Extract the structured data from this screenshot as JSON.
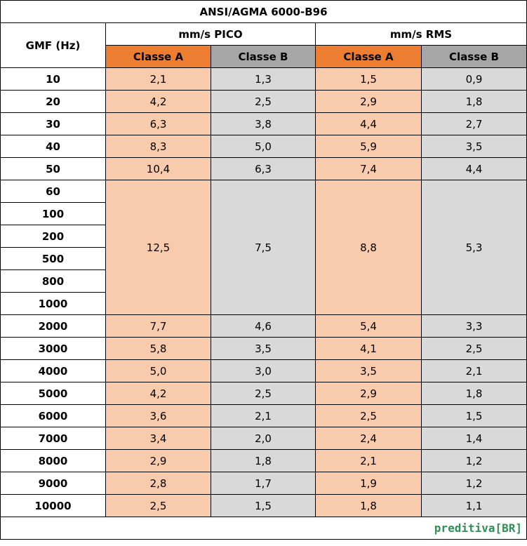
{
  "title": "ANSI/AGMA 6000-B96",
  "header": {
    "gmf": "GMF (Hz)",
    "groups": [
      "mm/s PICO",
      "mm/s RMS"
    ],
    "classes": [
      "Classe A",
      "Classe B",
      "Classe A",
      "Classe B"
    ]
  },
  "rows": [
    {
      "gmf": [
        "10"
      ],
      "values": [
        "2,1",
        "1,3",
        "1,5",
        "0,9"
      ]
    },
    {
      "gmf": [
        "20"
      ],
      "values": [
        "4,2",
        "2,5",
        "2,9",
        "1,8"
      ]
    },
    {
      "gmf": [
        "30"
      ],
      "values": [
        "6,3",
        "3,8",
        "4,4",
        "2,7"
      ]
    },
    {
      "gmf": [
        "40"
      ],
      "values": [
        "8,3",
        "5,0",
        "5,9",
        "3,5"
      ]
    },
    {
      "gmf": [
        "50"
      ],
      "values": [
        "10,4",
        "6,3",
        "7,4",
        "4,4"
      ]
    },
    {
      "gmf": [
        "60",
        "100",
        "200",
        "500",
        "800",
        "1000"
      ],
      "values": [
        "12,5",
        "7,5",
        "8,8",
        "5,3"
      ]
    },
    {
      "gmf": [
        "2000"
      ],
      "values": [
        "7,7",
        "4,6",
        "5,4",
        "3,3"
      ]
    },
    {
      "gmf": [
        "3000"
      ],
      "values": [
        "5,8",
        "3,5",
        "4,1",
        "2,5"
      ]
    },
    {
      "gmf": [
        "4000"
      ],
      "values": [
        "5,0",
        "3,0",
        "3,5",
        "2,1"
      ]
    },
    {
      "gmf": [
        "5000"
      ],
      "values": [
        "4,2",
        "2,5",
        "2,9",
        "1,8"
      ]
    },
    {
      "gmf": [
        "6000"
      ],
      "values": [
        "3,6",
        "2,1",
        "2,5",
        "1,5"
      ]
    },
    {
      "gmf": [
        "7000"
      ],
      "values": [
        "3,4",
        "2,0",
        "2,4",
        "1,4"
      ]
    },
    {
      "gmf": [
        "8000"
      ],
      "values": [
        "2,9",
        "1,8",
        "2,1",
        "1,2"
      ]
    },
    {
      "gmf": [
        "9000"
      ],
      "values": [
        "2,8",
        "1,7",
        "1,9",
        "1,2"
      ]
    },
    {
      "gmf": [
        "10000"
      ],
      "values": [
        "2,5",
        "1,5",
        "1,8",
        "1,1"
      ]
    }
  ],
  "footer": {
    "logo": "preditiva[BR]"
  }
}
